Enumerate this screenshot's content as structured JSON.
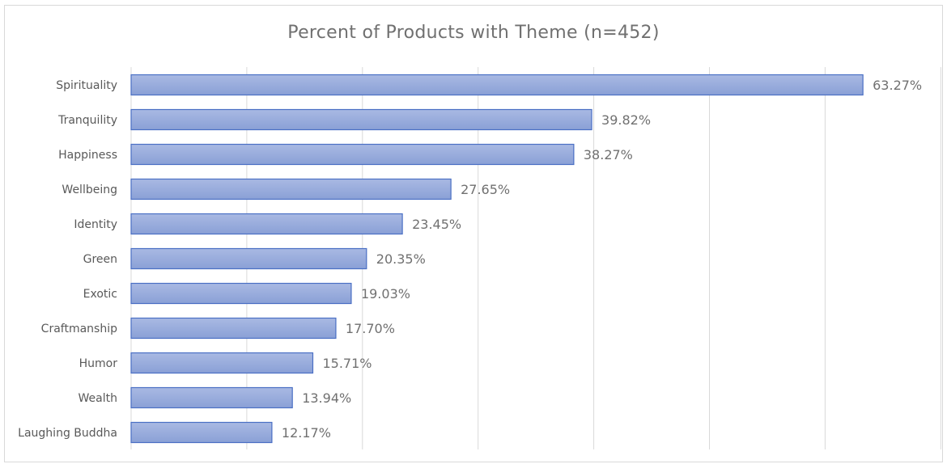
{
  "chart_data": {
    "type": "bar",
    "orientation": "horizontal",
    "title": "Percent of Products with Theme (n=452)",
    "xlabel": "",
    "ylabel": "",
    "categories": [
      "Spirituality",
      "Tranquility",
      "Happiness",
      "Wellbeing",
      "Identity",
      "Green",
      "Exotic",
      "Craftmanship",
      "Humor",
      "Wealth",
      "Laughing Buddha"
    ],
    "values": [
      63.27,
      39.82,
      38.27,
      27.65,
      23.45,
      20.35,
      19.03,
      17.7,
      15.71,
      13.94,
      12.17
    ],
    "data_labels": [
      "63.27%",
      "39.82%",
      "38.27%",
      "27.65%",
      "23.45%",
      "20.35%",
      "19.03%",
      "17.70%",
      "15.71%",
      "13.94%",
      "12.17%"
    ],
    "xlim": [
      0,
      70
    ],
    "grid": true,
    "legend": "none",
    "colors": {
      "bar_top": "#a9b9e3",
      "bar_bottom": "#8aa0d6",
      "bar_border": "#4a6fc4",
      "grid": "#d9d9d9",
      "text": "#595959",
      "label_text": "#707070"
    }
  }
}
